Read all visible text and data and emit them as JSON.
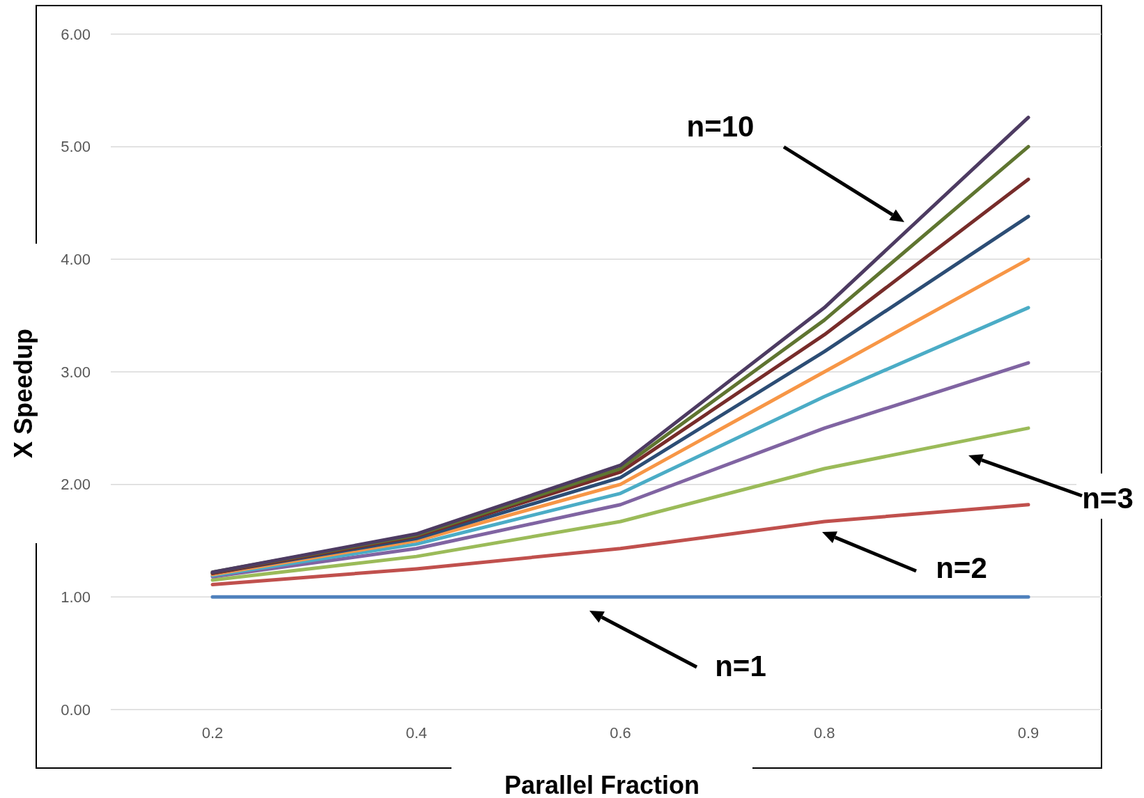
{
  "chart_data": {
    "type": "line",
    "xlabel": "Parallel Fraction",
    "ylabel": "X Speedup",
    "categories": [
      "0.2",
      "0.4",
      "0.6",
      "0.8",
      "0.9"
    ],
    "ylim": [
      0,
      6
    ],
    "yticks": [
      {
        "value": 0,
        "label": "0.00"
      },
      {
        "value": 1,
        "label": "1.00"
      },
      {
        "value": 2,
        "label": "2.00"
      },
      {
        "value": 3,
        "label": "3.00"
      },
      {
        "value": 4,
        "label": "4.00"
      },
      {
        "value": 5,
        "label": "5.00"
      },
      {
        "value": 6,
        "label": "6.00"
      }
    ],
    "grid": "y",
    "series": [
      {
        "color": "#4f81bd",
        "values": [
          1,
          1,
          1,
          1,
          1
        ]
      },
      {
        "color": "#c0504d",
        "values": [
          1.11,
          1.25,
          1.43,
          1.67,
          1.82
        ]
      },
      {
        "color": "#9bbb59",
        "values": [
          1.15,
          1.36,
          1.67,
          2.14,
          2.5
        ]
      },
      {
        "color": "#8064a2",
        "values": [
          1.18,
          1.43,
          1.82,
          2.5,
          3.08
        ]
      },
      {
        "color": "#4bacc6",
        "values": [
          1.19,
          1.47,
          1.92,
          2.78,
          3.57
        ]
      },
      {
        "color": "#f79646",
        "values": [
          1.2,
          1.5,
          2,
          3,
          4
        ]
      },
      {
        "color": "#2c4d75",
        "values": [
          1.21,
          1.52,
          2.06,
          3.18,
          4.38
        ]
      },
      {
        "color": "#772c2a",
        "values": [
          1.21,
          1.54,
          2.11,
          3.33,
          4.71
        ]
      },
      {
        "color": "#5f7530",
        "values": [
          1.22,
          1.55,
          2.14,
          3.46,
          5
        ]
      },
      {
        "color": "#4d3b62",
        "values": [
          1.22,
          1.56,
          2.17,
          3.57,
          5.26
        ]
      }
    ],
    "annotations": [
      "n=10",
      "n=3",
      "n=2",
      "n=1"
    ]
  }
}
